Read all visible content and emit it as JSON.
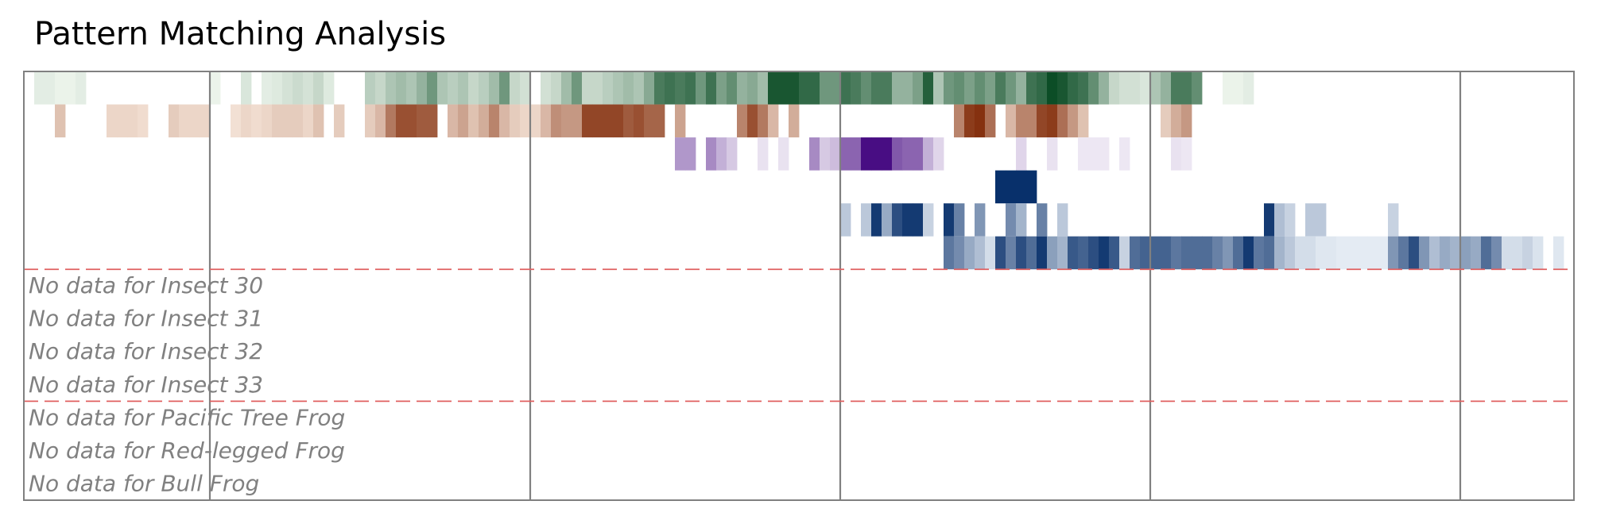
{
  "chart_data": {
    "type": "heatmap",
    "title": "Pattern Matching Analysis",
    "x_range": [
      0,
      150
    ],
    "divider_x": [
      18,
      49,
      79,
      109,
      139
    ],
    "group_separators_after_row": [
      6,
      10
    ],
    "rows": [
      {
        "label": "",
        "palette": "Greens",
        "cells": [
          [
            1,
            0.08
          ],
          [
            2,
            0.08
          ],
          [
            3,
            0.05
          ],
          [
            4,
            0.05
          ],
          [
            5,
            0.08
          ],
          [
            18,
            0.05
          ],
          [
            21,
            0.12
          ],
          [
            23,
            0.08
          ],
          [
            24,
            0.1
          ],
          [
            25,
            0.14
          ],
          [
            26,
            0.18
          ],
          [
            27,
            0.14
          ],
          [
            28,
            0.2
          ],
          [
            29,
            0.1
          ],
          [
            33,
            0.25
          ],
          [
            34,
            0.2
          ],
          [
            35,
            0.3
          ],
          [
            36,
            0.35
          ],
          [
            37,
            0.3
          ],
          [
            38,
            0.4
          ],
          [
            39,
            0.55
          ],
          [
            40,
            0.3
          ],
          [
            41,
            0.25
          ],
          [
            42,
            0.3
          ],
          [
            43,
            0.2
          ],
          [
            44,
            0.25
          ],
          [
            45,
            0.35
          ],
          [
            46,
            0.55
          ],
          [
            47,
            0.2
          ],
          [
            48,
            0.15
          ],
          [
            50,
            0.15
          ],
          [
            51,
            0.2
          ],
          [
            52,
            0.35
          ],
          [
            53,
            0.55
          ],
          [
            54,
            0.2
          ],
          [
            55,
            0.2
          ],
          [
            56,
            0.25
          ],
          [
            57,
            0.3
          ],
          [
            58,
            0.35
          ],
          [
            59,
            0.3
          ],
          [
            60,
            0.45
          ],
          [
            61,
            0.7
          ],
          [
            62,
            0.75
          ],
          [
            63,
            0.7
          ],
          [
            64,
            0.75
          ],
          [
            65,
            0.55
          ],
          [
            66,
            0.75
          ],
          [
            67,
            0.5
          ],
          [
            68,
            0.6
          ],
          [
            69,
            0.4
          ],
          [
            70,
            0.45
          ],
          [
            71,
            0.35
          ],
          [
            72,
            0.9
          ],
          [
            73,
            0.9
          ],
          [
            74,
            0.9
          ],
          [
            75,
            0.8
          ],
          [
            76,
            0.8
          ],
          [
            77,
            0.55
          ],
          [
            78,
            0.55
          ],
          [
            79,
            0.75
          ],
          [
            80,
            0.7
          ],
          [
            81,
            0.6
          ],
          [
            82,
            0.7
          ],
          [
            83,
            0.7
          ],
          [
            84,
            0.4
          ],
          [
            85,
            0.4
          ],
          [
            86,
            0.5
          ],
          [
            87,
            0.85
          ],
          [
            88,
            0.3
          ],
          [
            89,
            0.55
          ],
          [
            90,
            0.6
          ],
          [
            91,
            0.5
          ],
          [
            92,
            0.6
          ],
          [
            93,
            0.5
          ],
          [
            94,
            0.7
          ],
          [
            95,
            0.55
          ],
          [
            96,
            0.4
          ],
          [
            97,
            0.75
          ],
          [
            98,
            0.8
          ],
          [
            99,
            0.95
          ],
          [
            100,
            0.9
          ],
          [
            101,
            0.8
          ],
          [
            102,
            0.75
          ],
          [
            103,
            0.6
          ],
          [
            104,
            0.4
          ],
          [
            105,
            0.2
          ],
          [
            106,
            0.15
          ],
          [
            107,
            0.15
          ],
          [
            108,
            0.12
          ],
          [
            109,
            0.3
          ],
          [
            110,
            0.4
          ],
          [
            111,
            0.7
          ],
          [
            112,
            0.7
          ],
          [
            113,
            0.6
          ],
          [
            116,
            0.05
          ],
          [
            117,
            0.05
          ],
          [
            118,
            0.08
          ]
        ]
      },
      {
        "label": "",
        "palette": "Oranges",
        "cells": [
          [
            3,
            0.25
          ],
          [
            8,
            0.15
          ],
          [
            9,
            0.15
          ],
          [
            10,
            0.15
          ],
          [
            11,
            0.12
          ],
          [
            14,
            0.2
          ],
          [
            15,
            0.15
          ],
          [
            16,
            0.15
          ],
          [
            17,
            0.15
          ],
          [
            20,
            0.1
          ],
          [
            21,
            0.15
          ],
          [
            22,
            0.12
          ],
          [
            23,
            0.15
          ],
          [
            24,
            0.2
          ],
          [
            25,
            0.2
          ],
          [
            26,
            0.2
          ],
          [
            27,
            0.15
          ],
          [
            28,
            0.25
          ],
          [
            30,
            0.2
          ],
          [
            33,
            0.2
          ],
          [
            34,
            0.3
          ],
          [
            35,
            0.6
          ],
          [
            36,
            0.8
          ],
          [
            37,
            0.8
          ],
          [
            38,
            0.75
          ],
          [
            39,
            0.75
          ],
          [
            41,
            0.3
          ],
          [
            42,
            0.4
          ],
          [
            43,
            0.25
          ],
          [
            44,
            0.35
          ],
          [
            45,
            0.55
          ],
          [
            46,
            0.3
          ],
          [
            47,
            0.2
          ],
          [
            48,
            0.15
          ],
          [
            49,
            0.15
          ],
          [
            50,
            0.3
          ],
          [
            51,
            0.5
          ],
          [
            52,
            0.45
          ],
          [
            53,
            0.45
          ],
          [
            54,
            0.85
          ],
          [
            55,
            0.85
          ],
          [
            56,
            0.85
          ],
          [
            57,
            0.85
          ],
          [
            58,
            0.75
          ],
          [
            59,
            0.8
          ],
          [
            60,
            0.7
          ],
          [
            61,
            0.7
          ],
          [
            63,
            0.4
          ],
          [
            69,
            0.55
          ],
          [
            70,
            0.8
          ],
          [
            71,
            0.6
          ],
          [
            72,
            0.3
          ],
          [
            74,
            0.35
          ],
          [
            90,
            0.55
          ],
          [
            91,
            0.9
          ],
          [
            92,
            0.95
          ],
          [
            93,
            0.65
          ],
          [
            95,
            0.3
          ],
          [
            96,
            0.55
          ],
          [
            97,
            0.55
          ],
          [
            98,
            0.85
          ],
          [
            99,
            0.9
          ],
          [
            100,
            0.65
          ],
          [
            101,
            0.45
          ],
          [
            102,
            0.25
          ],
          [
            110,
            0.2
          ],
          [
            111,
            0.35
          ],
          [
            112,
            0.45
          ]
        ]
      },
      {
        "label": "",
        "palette": "Purples",
        "cells": [
          [
            63,
            0.4
          ],
          [
            64,
            0.4
          ],
          [
            66,
            0.45
          ],
          [
            67,
            0.3
          ],
          [
            68,
            0.2
          ],
          [
            71,
            0.1
          ],
          [
            73,
            0.1
          ],
          [
            76,
            0.45
          ],
          [
            77,
            0.2
          ],
          [
            78,
            0.25
          ],
          [
            79,
            0.6
          ],
          [
            80,
            0.6
          ],
          [
            81,
            0.95
          ],
          [
            82,
            0.95
          ],
          [
            83,
            0.95
          ],
          [
            84,
            0.65
          ],
          [
            85,
            0.6
          ],
          [
            86,
            0.6
          ],
          [
            87,
            0.3
          ],
          [
            88,
            0.15
          ],
          [
            96,
            0.15
          ],
          [
            99,
            0.1
          ],
          [
            102,
            0.08
          ],
          [
            103,
            0.08
          ],
          [
            104,
            0.08
          ],
          [
            106,
            0.08
          ],
          [
            111,
            0.1
          ],
          [
            112,
            0.08
          ]
        ]
      },
      {
        "label": "",
        "palette": "Blues",
        "cells": [
          [
            94,
            1.0
          ],
          [
            95,
            1.0
          ],
          [
            96,
            1.0
          ],
          [
            97,
            1.0
          ]
        ]
      },
      {
        "label": "",
        "palette": "Blues",
        "cells": [
          [
            79,
            0.25
          ],
          [
            81,
            0.25
          ],
          [
            82,
            0.95
          ],
          [
            83,
            0.4
          ],
          [
            84,
            0.85
          ],
          [
            85,
            0.95
          ],
          [
            86,
            0.95
          ],
          [
            87,
            0.2
          ],
          [
            89,
            0.95
          ],
          [
            90,
            0.6
          ],
          [
            92,
            0.5
          ],
          [
            95,
            0.55
          ],
          [
            96,
            0.35
          ],
          [
            98,
            0.6
          ],
          [
            100,
            0.25
          ],
          [
            120,
            0.95
          ],
          [
            121,
            0.3
          ],
          [
            122,
            0.2
          ],
          [
            124,
            0.25
          ],
          [
            125,
            0.25
          ],
          [
            132,
            0.2
          ]
        ]
      },
      {
        "label": "",
        "palette": "Blues",
        "cells": [
          [
            89,
            0.65
          ],
          [
            90,
            0.55
          ],
          [
            91,
            0.4
          ],
          [
            92,
            0.3
          ],
          [
            93,
            0.15
          ],
          [
            94,
            0.85
          ],
          [
            95,
            0.6
          ],
          [
            96,
            0.85
          ],
          [
            97,
            0.7
          ],
          [
            98,
            0.95
          ],
          [
            99,
            0.45
          ],
          [
            100,
            0.35
          ],
          [
            101,
            0.8
          ],
          [
            102,
            0.75
          ],
          [
            103,
            0.85
          ],
          [
            104,
            0.95
          ],
          [
            105,
            0.8
          ],
          [
            106,
            0.2
          ],
          [
            107,
            0.7
          ],
          [
            108,
            0.75
          ],
          [
            109,
            0.75
          ],
          [
            110,
            0.75
          ],
          [
            111,
            0.65
          ],
          [
            112,
            0.7
          ],
          [
            113,
            0.7
          ],
          [
            114,
            0.7
          ],
          [
            115,
            0.6
          ],
          [
            116,
            0.5
          ],
          [
            117,
            0.7
          ],
          [
            118,
            0.95
          ],
          [
            119,
            0.65
          ],
          [
            120,
            0.7
          ],
          [
            121,
            0.35
          ],
          [
            122,
            0.25
          ],
          [
            123,
            0.15
          ],
          [
            124,
            0.15
          ],
          [
            125,
            0.1
          ],
          [
            126,
            0.1
          ],
          [
            127,
            0.08
          ],
          [
            128,
            0.08
          ],
          [
            129,
            0.08
          ],
          [
            130,
            0.08
          ],
          [
            131,
            0.08
          ],
          [
            132,
            0.5
          ],
          [
            133,
            0.65
          ],
          [
            134,
            0.85
          ],
          [
            135,
            0.5
          ],
          [
            136,
            0.3
          ],
          [
            137,
            0.4
          ],
          [
            138,
            0.35
          ],
          [
            139,
            0.45
          ],
          [
            140,
            0.4
          ],
          [
            141,
            0.7
          ],
          [
            142,
            0.55
          ],
          [
            143,
            0.15
          ],
          [
            144,
            0.15
          ],
          [
            145,
            0.2
          ],
          [
            146,
            0.12
          ],
          [
            148,
            0.1
          ]
        ]
      },
      {
        "label": "No data for Insect 30",
        "palette": "",
        "cells": []
      },
      {
        "label": "No data for Insect 31",
        "palette": "",
        "cells": []
      },
      {
        "label": "No data for Insect 32",
        "palette": "",
        "cells": []
      },
      {
        "label": "No data for Insect 33",
        "palette": "",
        "cells": []
      },
      {
        "label": "No data for Pacific Tree Frog",
        "palette": "",
        "cells": []
      },
      {
        "label": "No data for Red-legged Frog",
        "palette": "",
        "cells": []
      },
      {
        "label": "No data for Bull Frog",
        "palette": "",
        "cells": []
      }
    ],
    "colors": {
      "frame": "#808080",
      "separator": "#e06060",
      "nodata_text": "#808080",
      "Greens": [
        "#f7fcf5",
        "#00441b"
      ],
      "Oranges": [
        "#fff5eb",
        "#7f2704"
      ],
      "Purples": [
        "#fcfbfd",
        "#3f007d"
      ],
      "Blues": [
        "#f7fbff",
        "#08306b"
      ]
    }
  }
}
